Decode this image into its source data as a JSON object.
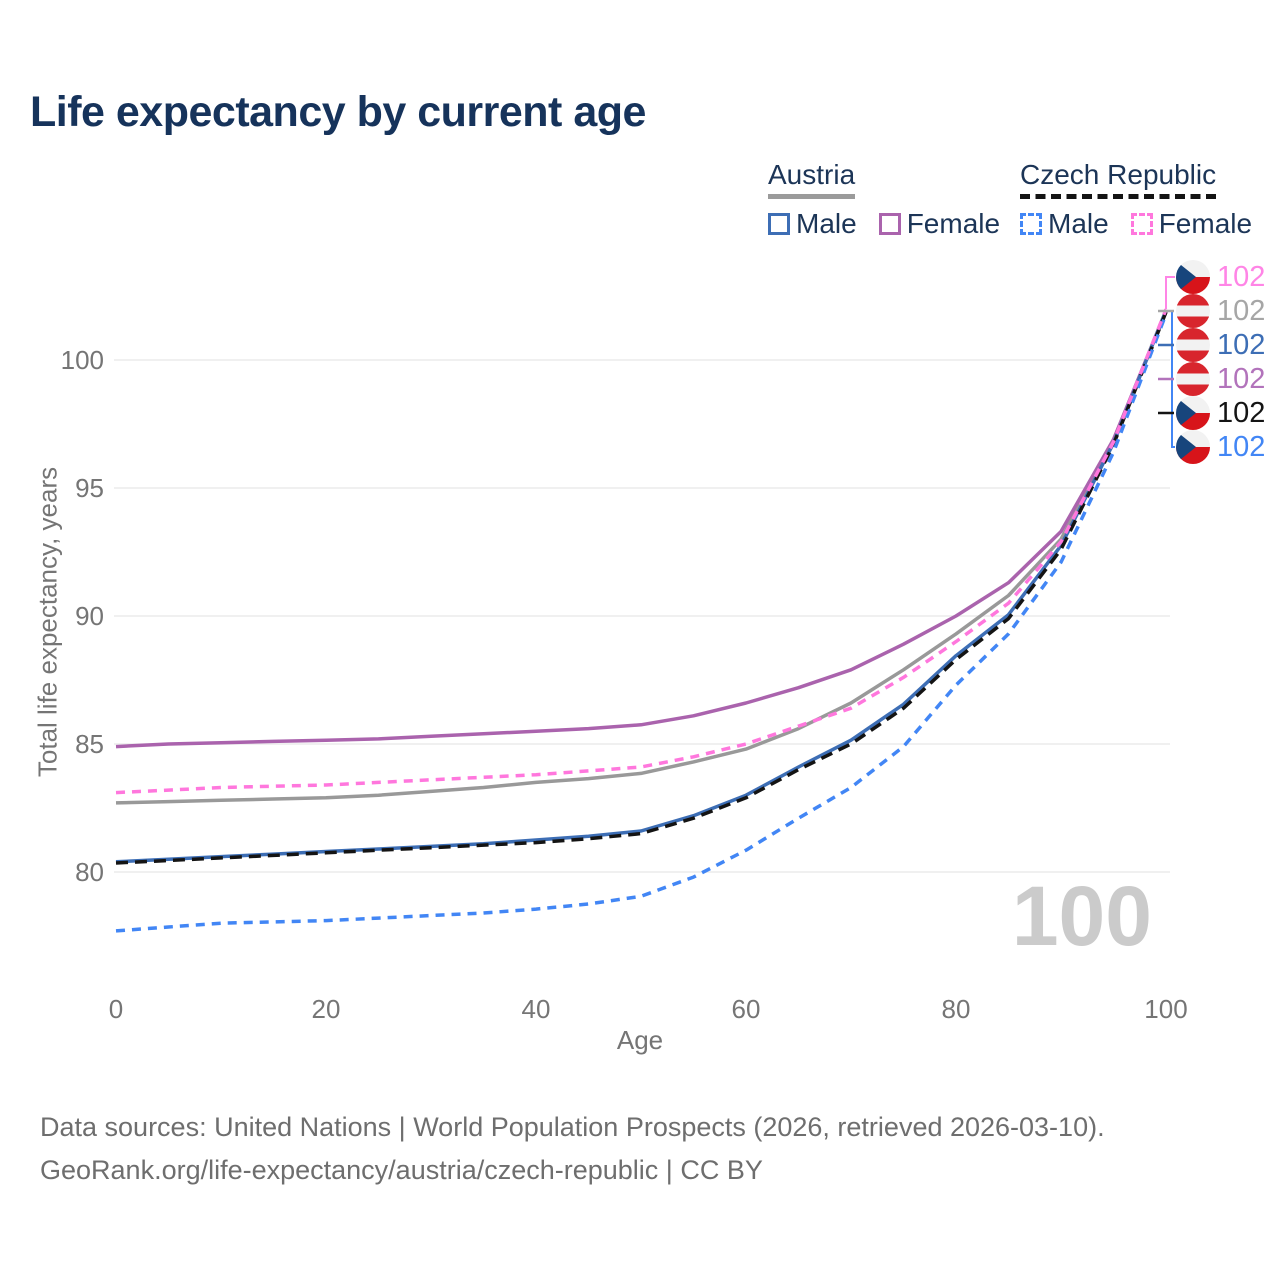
{
  "title": "Life expectancy by current age",
  "legend": {
    "groups": [
      {
        "label": "Austria",
        "line_style": "solid",
        "line_color": "#9b9b9b",
        "items": [
          {
            "label": "Male",
            "color": "#3d6eb5",
            "dashed": false
          },
          {
            "label": "Female",
            "color": "#aa63ad",
            "dashed": false
          }
        ]
      },
      {
        "label": "Czech Republic",
        "line_style": "dashed",
        "line_color": "#141414",
        "items": [
          {
            "label": "Male",
            "color": "#4286f5",
            "dashed": true
          },
          {
            "label": "Female",
            "color": "#ff77dd",
            "dashed": true
          }
        ]
      }
    ]
  },
  "axes": {
    "y_title": "Total life expectancy, years",
    "x_title": "Age",
    "y_ticks": [
      100,
      95,
      90,
      85,
      80
    ],
    "x_ticks": [
      0,
      20,
      40,
      60,
      80,
      100
    ]
  },
  "hover_age_watermark": "100",
  "end_labels": [
    {
      "series": "czech-female",
      "flag": "cz",
      "value": "102",
      "color": "#ff85e6"
    },
    {
      "series": "austria-total",
      "flag": "at",
      "value": "102",
      "color": "#a6a6a6"
    },
    {
      "series": "austria-male",
      "flag": "at",
      "value": "102",
      "color": "#3d6eb5"
    },
    {
      "series": "austria-female",
      "flag": "at",
      "value": "102",
      "color": "#b273bb"
    },
    {
      "series": "czech-total",
      "flag": "cz",
      "value": "102",
      "color": "#141414"
    },
    {
      "series": "czech-male",
      "flag": "cz",
      "value": "102",
      "color": "#4286f5"
    }
  ],
  "footer": {
    "line1": "Data sources: United Nations | World Population Prospects (2026, retrieved 2026-03-10).",
    "line2": "GeoRank.org/life-expectancy/austria/czech-republic | CC BY"
  },
  "flag_colors": {
    "at_red": "#d8252d",
    "cz_red": "#d7141a",
    "cz_blue": "#17457c",
    "white": "#f2f2f2"
  },
  "chart_data": {
    "type": "line",
    "title": "Life expectancy by current age",
    "xlabel": "Age",
    "ylabel": "Total life expectancy, years",
    "xlim": [
      0,
      100
    ],
    "ylim": [
      76,
      103
    ],
    "grid": "horizontal-only",
    "legend_position": "top-right",
    "hovered_x": 100,
    "x": [
      0,
      5,
      10,
      15,
      20,
      25,
      30,
      35,
      40,
      45,
      50,
      55,
      60,
      65,
      70,
      75,
      80,
      85,
      90,
      95,
      100
    ],
    "draw_order": [
      "austria-total",
      "austria-female",
      "austria-male",
      "czech-total",
      "czech-male",
      "czech-female"
    ],
    "series": [
      {
        "id": "austria-female",
        "name": "Austria Female",
        "color": "#aa63ad",
        "dashed": false,
        "values": [
          84.9,
          85.0,
          85.05,
          85.1,
          85.15,
          85.2,
          85.3,
          85.4,
          85.5,
          85.6,
          85.75,
          86.1,
          86.6,
          87.2,
          87.9,
          88.9,
          90.0,
          91.3,
          93.3,
          96.9,
          101.9
        ]
      },
      {
        "id": "austria-total",
        "name": "Austria",
        "color": "#999999",
        "dashed": false,
        "values": [
          82.7,
          82.75,
          82.8,
          82.85,
          82.9,
          83.0,
          83.15,
          83.3,
          83.5,
          83.65,
          83.85,
          84.3,
          84.8,
          85.6,
          86.6,
          87.9,
          89.3,
          90.8,
          93.0,
          96.85,
          101.95
        ]
      },
      {
        "id": "austria-male",
        "name": "Austria Male",
        "color": "#3d6eb5",
        "dashed": false,
        "values": [
          80.4,
          80.5,
          80.6,
          80.7,
          80.8,
          80.9,
          81.0,
          81.1,
          81.25,
          81.4,
          81.6,
          82.2,
          83.0,
          84.1,
          85.15,
          86.55,
          88.45,
          90.05,
          92.75,
          96.75,
          101.93
        ]
      },
      {
        "id": "czech-female",
        "name": "Czech Republic Female",
        "color": "#ff77dd",
        "dashed": true,
        "values": [
          83.1,
          83.2,
          83.3,
          83.35,
          83.4,
          83.5,
          83.6,
          83.7,
          83.8,
          83.95,
          84.1,
          84.5,
          85.0,
          85.7,
          86.4,
          87.6,
          89.0,
          90.5,
          92.9,
          96.8,
          101.98
        ]
      },
      {
        "id": "czech-total",
        "name": "Czech Republic",
        "color": "#141414",
        "dashed": true,
        "values": [
          80.35,
          80.45,
          80.55,
          80.65,
          80.75,
          80.85,
          80.95,
          81.05,
          81.15,
          81.3,
          81.5,
          82.1,
          82.9,
          84.0,
          85.0,
          86.4,
          88.3,
          89.9,
          92.6,
          96.7,
          101.87
        ]
      },
      {
        "id": "czech-male",
        "name": "Czech Republic Male",
        "color": "#4286f5",
        "dashed": true,
        "values": [
          77.7,
          77.85,
          78.0,
          78.05,
          78.1,
          78.2,
          78.3,
          78.4,
          78.55,
          78.75,
          79.05,
          79.8,
          80.85,
          82.1,
          83.3,
          84.9,
          87.3,
          89.3,
          92.1,
          96.4,
          101.8
        ]
      }
    ]
  }
}
